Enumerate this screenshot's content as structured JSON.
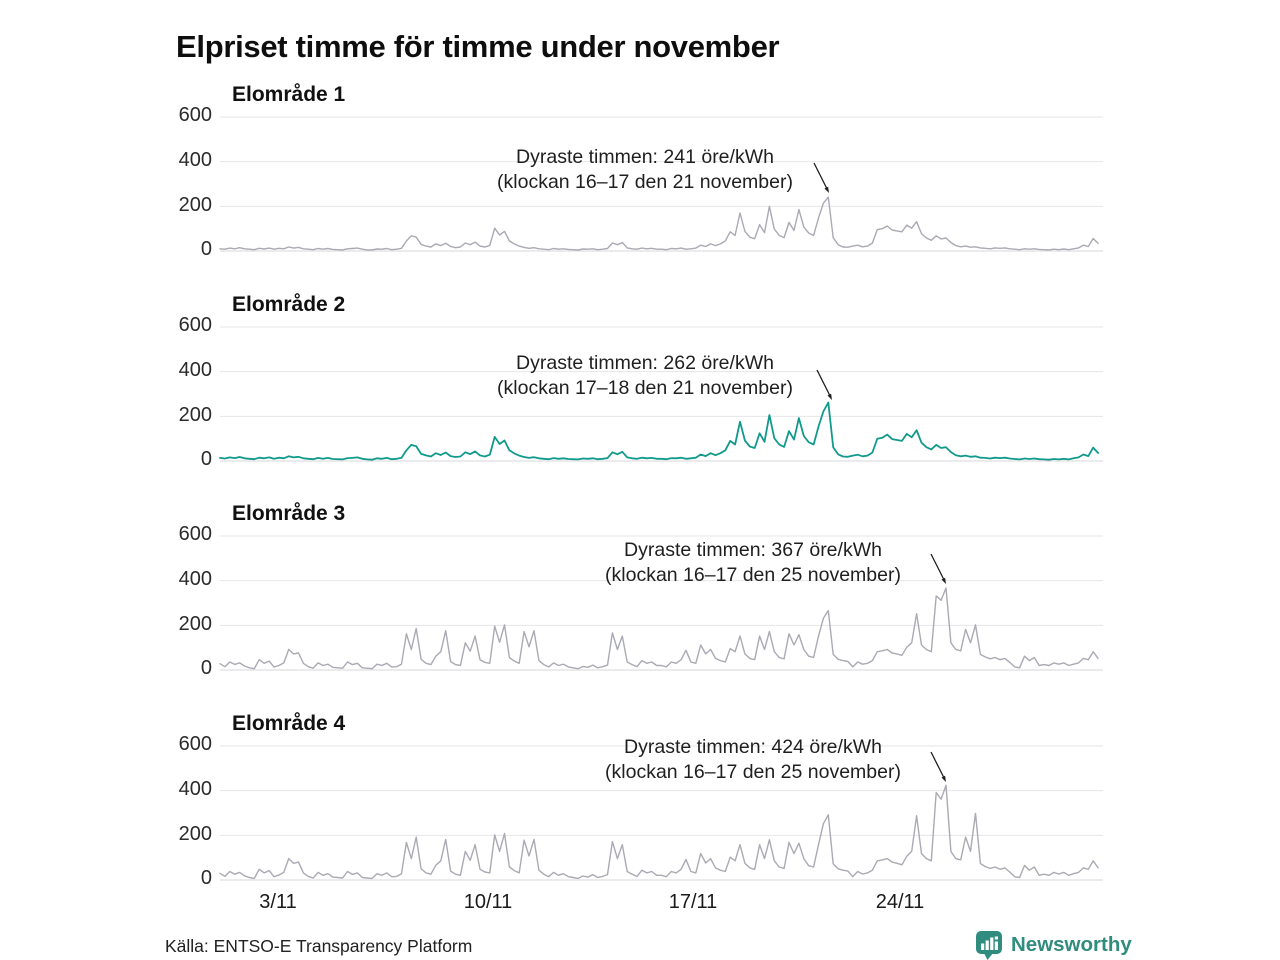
{
  "title": "Elpriset timme för timme under november",
  "source": "Källa: ENTSO-E Transparency Platform",
  "branding": {
    "name": "Newsworthy",
    "color": "#2f8c7e"
  },
  "colors": {
    "accent_line": "#119a8c",
    "muted_line": "#a9aab3",
    "gridline": "#e6e6ea",
    "zeroline": "#d7d7db"
  },
  "axis": {
    "yticks": [
      "600",
      "400",
      "200",
      "0"
    ],
    "xticks": [
      "3/11",
      "10/11",
      "17/11",
      "24/11"
    ]
  },
  "chart_data": {
    "type": "line",
    "title": "Elpriset timme för timme under november",
    "ylabel": "öre/kWh",
    "ylim": [
      0,
      600
    ],
    "grid": true,
    "x_description": "Hourly electricity price during November, sampled every 4 hours (6 points per day, Nov 1-30)",
    "xtick_positions_hours": [
      48,
      216,
      384,
      552
    ],
    "xtick_labels": [
      "3/11",
      "10/11",
      "17/11",
      "24/11"
    ],
    "panels": [
      {
        "title": "Elområde 1",
        "color": "#a9aab3",
        "stroke_width": 1.4,
        "annotation_line1": "Dyraste timmen: 241 öre/kWh",
        "annotation_line2": "(klockan 16–17 den 21 november)",
        "max_value": 241,
        "values_by_day": [
          [
            10,
            8,
            13,
            10,
            15,
            10
          ],
          [
            8,
            6,
            12,
            9,
            13,
            8
          ],
          [
            12,
            10,
            18,
            13,
            16,
            10
          ],
          [
            8,
            6,
            11,
            8,
            11,
            7
          ],
          [
            6,
            5,
            10,
            11,
            13,
            8
          ],
          [
            5,
            5,
            9,
            8,
            11,
            6
          ],
          [
            8,
            12,
            45,
            68,
            62,
            30
          ],
          [
            22,
            18,
            32,
            24,
            35,
            20
          ],
          [
            15,
            18,
            36,
            28,
            40,
            22
          ],
          [
            18,
            25,
            102,
            72,
            88,
            45
          ],
          [
            32,
            22,
            16,
            12,
            15,
            10
          ],
          [
            8,
            6,
            11,
            8,
            10,
            7
          ],
          [
            6,
            5,
            9,
            8,
            10,
            6
          ],
          [
            8,
            11,
            36,
            28,
            38,
            14
          ],
          [
            10,
            8,
            13,
            10,
            12,
            8
          ],
          [
            8,
            6,
            11,
            10,
            13,
            8
          ],
          [
            10,
            13,
            26,
            20,
            32,
            24
          ],
          [
            32,
            45,
            86,
            70,
            170,
            88
          ],
          [
            62,
            55,
            118,
            82,
            200,
            98
          ],
          [
            70,
            60,
            128,
            92,
            186,
            108
          ],
          [
            80,
            70,
            148,
            214,
            241,
            60
          ],
          [
            28,
            18,
            17,
            22,
            26,
            19
          ],
          [
            22,
            36,
            96,
            100,
            112,
            94
          ],
          [
            90,
            86,
            116,
            102,
            131,
            78
          ],
          [
            58,
            48,
            68,
            54,
            58,
            38
          ],
          [
            24,
            19,
            22,
            17,
            19,
            14
          ],
          [
            12,
            10,
            14,
            12,
            14,
            10
          ],
          [
            8,
            6,
            10,
            8,
            10,
            7
          ],
          [
            6,
            5,
            8,
            6,
            9,
            6
          ],
          [
            10,
            14,
            26,
            20,
            56,
            34
          ]
        ]
      },
      {
        "title": "Elområde 2",
        "color": "#119a8c",
        "stroke_width": 1.8,
        "annotation_line1": "Dyraste timmen: 262 öre/kWh",
        "annotation_line2": "(klockan 17–18 den 21 november)",
        "max_value": 262,
        "values_by_day": [
          [
            14,
            11,
            16,
            13,
            18,
            12
          ],
          [
            10,
            8,
            15,
            12,
            16,
            10
          ],
          [
            15,
            12,
            21,
            16,
            19,
            12
          ],
          [
            10,
            8,
            14,
            10,
            14,
            9
          ],
          [
            8,
            7,
            13,
            14,
            16,
            10
          ],
          [
            7,
            6,
            12,
            10,
            14,
            8
          ],
          [
            10,
            14,
            48,
            72,
            66,
            32
          ],
          [
            25,
            20,
            35,
            27,
            38,
            22
          ],
          [
            18,
            20,
            39,
            31,
            43,
            25
          ],
          [
            20,
            28,
            108,
            76,
            92,
            48
          ],
          [
            34,
            24,
            18,
            14,
            17,
            12
          ],
          [
            10,
            8,
            13,
            10,
            12,
            9
          ],
          [
            8,
            7,
            11,
            10,
            12,
            8
          ],
          [
            10,
            13,
            39,
            30,
            41,
            16
          ],
          [
            12,
            10,
            15,
            12,
            14,
            10
          ],
          [
            10,
            8,
            13,
            12,
            15,
            10
          ],
          [
            12,
            15,
            29,
            22,
            35,
            26
          ],
          [
            35,
            48,
            90,
            74,
            176,
            92
          ],
          [
            65,
            58,
            124,
            86,
            206,
            102
          ],
          [
            74,
            63,
            134,
            96,
            192,
            112
          ],
          [
            84,
            74,
            154,
            222,
            262,
            62
          ],
          [
            30,
            20,
            19,
            24,
            28,
            21
          ],
          [
            24,
            38,
            100,
            104,
            118,
            98
          ],
          [
            94,
            90,
            122,
            106,
            138,
            82
          ],
          [
            62,
            52,
            72,
            58,
            62,
            40
          ],
          [
            26,
            21,
            24,
            19,
            21,
            15
          ],
          [
            14,
            11,
            15,
            13,
            15,
            11
          ],
          [
            9,
            7,
            11,
            9,
            11,
            8
          ],
          [
            7,
            6,
            9,
            7,
            10,
            7
          ],
          [
            12,
            16,
            29,
            22,
            60,
            36
          ]
        ]
      },
      {
        "title": "Elområde 3",
        "color": "#a9aab3",
        "stroke_width": 1.4,
        "annotation_line1": "Dyraste timmen: 367 öre/kWh",
        "annotation_line2": "(klockan 16–17 den 25 november)",
        "max_value": 367,
        "values_by_day": [
          [
            28,
            15,
            36,
            25,
            32,
            18
          ],
          [
            10,
            6,
            46,
            30,
            40,
            14
          ],
          [
            20,
            32,
            92,
            72,
            76,
            30
          ],
          [
            15,
            8,
            32,
            20,
            26,
            12
          ],
          [
            10,
            8,
            36,
            24,
            30,
            10
          ],
          [
            8,
            6,
            26,
            20,
            30,
            14
          ],
          [
            15,
            26,
            162,
            92,
            186,
            48
          ],
          [
            30,
            24,
            62,
            82,
            176,
            38
          ],
          [
            24,
            20,
            122,
            84,
            152,
            46
          ],
          [
            34,
            30,
            196,
            124,
            202,
            56
          ],
          [
            40,
            30,
            172,
            104,
            176,
            42
          ],
          [
            24,
            14,
            32,
            20,
            26,
            14
          ],
          [
            10,
            6,
            16,
            12,
            22,
            10
          ],
          [
            15,
            22,
            166,
            92,
            152,
            36
          ],
          [
            24,
            15,
            42,
            30,
            36,
            20
          ],
          [
            20,
            14,
            36,
            30,
            46,
            88
          ],
          [
            36,
            30,
            112,
            72,
            92,
            52
          ],
          [
            42,
            36,
            96,
            82,
            152,
            72
          ],
          [
            52,
            46,
            152,
            92,
            172,
            82
          ],
          [
            56,
            50,
            162,
            112,
            158,
            92
          ],
          [
            62,
            56,
            152,
            232,
            266,
            70
          ],
          [
            48,
            42,
            38,
            14,
            36,
            26
          ],
          [
            30,
            42,
            82,
            86,
            92,
            76
          ],
          [
            72,
            66,
            102,
            122,
            252,
            112
          ],
          [
            92,
            82,
            332,
            312,
            367,
            122
          ],
          [
            92,
            86,
            182,
            122,
            202,
            70
          ],
          [
            58,
            50,
            56,
            46,
            52,
            34
          ],
          [
            14,
            10,
            62,
            42,
            56,
            20
          ],
          [
            24,
            20,
            32,
            26,
            32,
            20
          ],
          [
            26,
            32,
            52,
            46,
            82,
            52
          ]
        ]
      },
      {
        "title": "Elområde 4",
        "color": "#a9aab3",
        "stroke_width": 1.4,
        "annotation_line1": "Dyraste timmen: 424 öre/kWh",
        "annotation_line2": "(klockan 16–17 den 25 november)",
        "max_value": 424,
        "values_by_day": [
          [
            30,
            16,
            38,
            26,
            34,
            19
          ],
          [
            11,
            7,
            48,
            32,
            42,
            15
          ],
          [
            22,
            34,
            96,
            75,
            80,
            32
          ],
          [
            16,
            9,
            34,
            21,
            28,
            13
          ],
          [
            11,
            9,
            38,
            25,
            32,
            11
          ],
          [
            9,
            7,
            28,
            21,
            32,
            15
          ],
          [
            16,
            28,
            168,
            96,
            192,
            50
          ],
          [
            32,
            26,
            66,
            86,
            182,
            40
          ],
          [
            26,
            21,
            128,
            88,
            158,
            48
          ],
          [
            36,
            32,
            202,
            128,
            208,
            58
          ],
          [
            42,
            32,
            178,
            108,
            182,
            44
          ],
          [
            26,
            15,
            34,
            21,
            28,
            15
          ],
          [
            11,
            7,
            18,
            13,
            24,
            11
          ],
          [
            16,
            24,
            172,
            96,
            158,
            38
          ],
          [
            26,
            16,
            44,
            32,
            38,
            21
          ],
          [
            21,
            15,
            38,
            32,
            48,
            92
          ],
          [
            38,
            32,
            118,
            76,
            96,
            54
          ],
          [
            44,
            38,
            102,
            86,
            158,
            75
          ],
          [
            54,
            48,
            158,
            96,
            180,
            86
          ],
          [
            58,
            52,
            168,
            118,
            165,
            96
          ],
          [
            64,
            58,
            158,
            252,
            292,
            72
          ],
          [
            50,
            44,
            40,
            15,
            38,
            27
          ],
          [
            32,
            44,
            86,
            90,
            96,
            80
          ],
          [
            75,
            68,
            106,
            128,
            288,
            118
          ],
          [
            96,
            86,
            392,
            362,
            424,
            128
          ],
          [
            96,
            90,
            192,
            128,
            298,
            74
          ],
          [
            60,
            52,
            58,
            48,
            54,
            36
          ],
          [
            15,
            11,
            65,
            44,
            58,
            21
          ],
          [
            26,
            21,
            34,
            27,
            34,
            21
          ],
          [
            28,
            34,
            54,
            48,
            86,
            54
          ]
        ]
      }
    ]
  }
}
